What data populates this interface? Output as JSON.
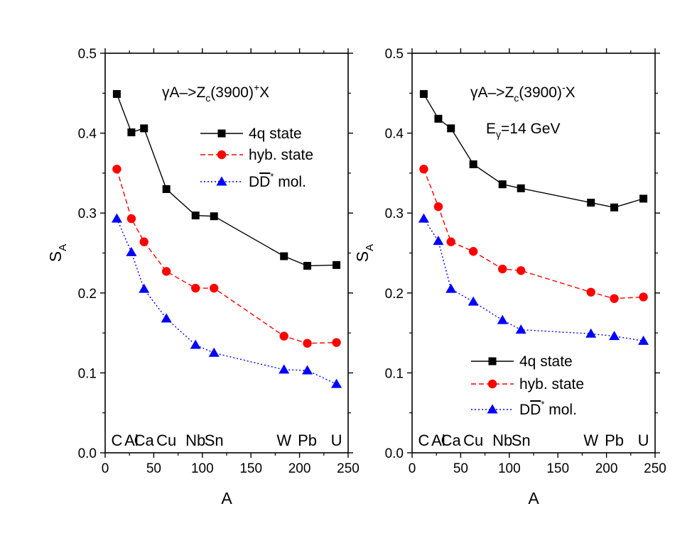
{
  "chart_data": [
    {
      "type": "line",
      "title": "",
      "annotation": {
        "prefix": "γA–>Z",
        "sub": "c",
        "mid": "(3900)",
        "sup": "+",
        "suffix": "X"
      },
      "energy": null,
      "xlabel": "A",
      "ylabel": {
        "main": "S",
        "sub": "A"
      },
      "xlim": [
        0,
        250
      ],
      "ylim": [
        0.0,
        0.5
      ],
      "xticks": [
        "0",
        "50",
        "100",
        "150",
        "200",
        "250"
      ],
      "yticks": [
        "0.0",
        "0.1",
        "0.2",
        "0.3",
        "0.4",
        "0.5"
      ],
      "legend_position": "top-right",
      "nuclei": [
        "C",
        "Al",
        "Ca",
        "Cu",
        "Nb",
        "Sn",
        "W",
        "Pb",
        "U"
      ],
      "x": [
        12,
        27,
        40,
        63,
        93,
        112,
        184,
        208,
        238
      ],
      "series": [
        {
          "name": "4q state",
          "legend_main": "4q state",
          "marker": "square",
          "color": "#000000",
          "dash": "solid",
          "values": [
            0.449,
            0.401,
            0.406,
            0.33,
            0.297,
            0.296,
            0.246,
            0.234,
            0.235
          ]
        },
        {
          "name": "hyb. state",
          "legend_main": "hyb. state",
          "marker": "circle",
          "color": "#ff0000",
          "dash": "dashed",
          "values": [
            0.355,
            0.293,
            0.264,
            0.227,
            0.206,
            0.206,
            0.146,
            0.137,
            0.138
          ]
        },
        {
          "name": "DD* mol.",
          "legend_main": "DD",
          "legend_sup": "*",
          "legend_tail": " mol.",
          "marker": "triangle",
          "color": "#0000ff",
          "dash": "dotted",
          "values": [
            0.293,
            0.251,
            0.205,
            0.168,
            0.135,
            0.125,
            0.104,
            0.103,
            0.086
          ]
        }
      ]
    },
    {
      "type": "line",
      "title": "",
      "annotation": {
        "prefix": "γA–>Z",
        "sub": "c",
        "mid": "(3900)",
        "sup": "-",
        "suffix": "X"
      },
      "energy": {
        "prefix": "E",
        "sub": "γ",
        "suffix": "=14 GeV"
      },
      "xlabel": "A",
      "ylabel": {
        "main": "S",
        "sub": "A"
      },
      "xlim": [
        0,
        250
      ],
      "ylim": [
        0.0,
        0.5
      ],
      "xticks": [
        "0",
        "50",
        "100",
        "150",
        "200",
        "250"
      ],
      "yticks": [
        "0.0",
        "0.1",
        "0.2",
        "0.3",
        "0.4",
        "0.5"
      ],
      "legend_position": "bottom-right",
      "nuclei": [
        "C",
        "Al",
        "Ca",
        "Cu",
        "Nb",
        "Sn",
        "W",
        "Pb",
        "U"
      ],
      "x": [
        12,
        27,
        40,
        63,
        93,
        112,
        184,
        208,
        238
      ],
      "series": [
        {
          "name": "4q state",
          "legend_main": "4q state",
          "marker": "square",
          "color": "#000000",
          "dash": "solid",
          "values": [
            0.449,
            0.418,
            0.406,
            0.361,
            0.336,
            0.331,
            0.313,
            0.307,
            0.318
          ]
        },
        {
          "name": "hyb. state",
          "legend_main": "hyb. state",
          "marker": "circle",
          "color": "#ff0000",
          "dash": "dashed",
          "values": [
            0.355,
            0.308,
            0.264,
            0.252,
            0.23,
            0.228,
            0.201,
            0.193,
            0.195
          ]
        },
        {
          "name": "DD* mol.",
          "legend_main": "DD",
          "legend_sup": "*",
          "legend_tail": " mol.",
          "marker": "triangle",
          "color": "#0000ff",
          "dash": "dotted",
          "values": [
            0.293,
            0.265,
            0.205,
            0.189,
            0.166,
            0.154,
            0.149,
            0.146,
            0.14
          ]
        }
      ]
    }
  ]
}
